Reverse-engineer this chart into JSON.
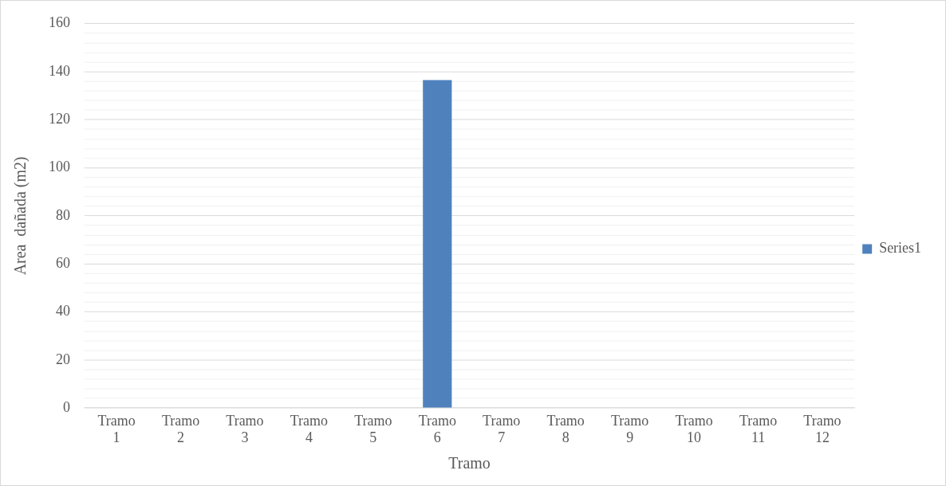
{
  "chart_data": {
    "type": "bar",
    "xlabel": "Tramo",
    "ylabel": "Area  dañada (m2)",
    "categories": [
      "Tramo 1",
      "Tramo 2",
      "Tramo 3",
      "Tramo 4",
      "Tramo 5",
      "Tramo 6",
      "Tramo 7",
      "Tramo 8",
      "Tramo 9",
      "Tramo 10",
      "Tramo 11",
      "Tramo 12"
    ],
    "series": [
      {
        "name": "Series1",
        "color": "#4f81bd",
        "values": [
          0,
          0,
          0,
          0,
          0,
          136.5,
          0,
          0,
          0,
          0,
          0,
          0
        ]
      }
    ],
    "ylim": [
      0,
      160
    ],
    "yticks": [
      0,
      {
        "value": 4,
        "label": null
      },
      {
        "value": 8,
        "label": null
      },
      {
        "value": 12,
        "label": null
      },
      {
        "value": 16,
        "label": null
      },
      20,
      {
        "value": 24,
        "label": null
      },
      {
        "value": 28,
        "label": null
      },
      {
        "value": 32,
        "label": null
      },
      {
        "value": 36,
        "label": null
      },
      40,
      {
        "value": 44,
        "label": null
      },
      {
        "value": 48,
        "label": null
      },
      {
        "value": 52,
        "label": null
      },
      {
        "value": 56,
        "label": null
      },
      60,
      {
        "value": 64,
        "label": null
      },
      {
        "value": 68,
        "label": null
      },
      {
        "value": 72,
        "label": null
      },
      {
        "value": 76,
        "label": null
      },
      80,
      {
        "value": 84,
        "label": null
      },
      {
        "value": 88,
        "label": null
      },
      {
        "value": 92,
        "label": null
      },
      {
        "value": 96,
        "label": null
      },
      100,
      {
        "value": 104,
        "label": null
      },
      {
        "value": 108,
        "label": null
      },
      {
        "value": 112,
        "label": null
      },
      {
        "value": 116,
        "label": null
      },
      120,
      {
        "value": 124,
        "label": null
      },
      {
        "value": 128,
        "label": null
      },
      {
        "value": 132,
        "label": null
      },
      {
        "value": 136,
        "label": null
      },
      140,
      {
        "value": 144,
        "label": null
      },
      {
        "value": 148,
        "label": null
      },
      {
        "value": 152,
        "label": null
      },
      {
        "value": 156,
        "label": null
      },
      160
    ],
    "grid": "y",
    "legend": "right"
  }
}
